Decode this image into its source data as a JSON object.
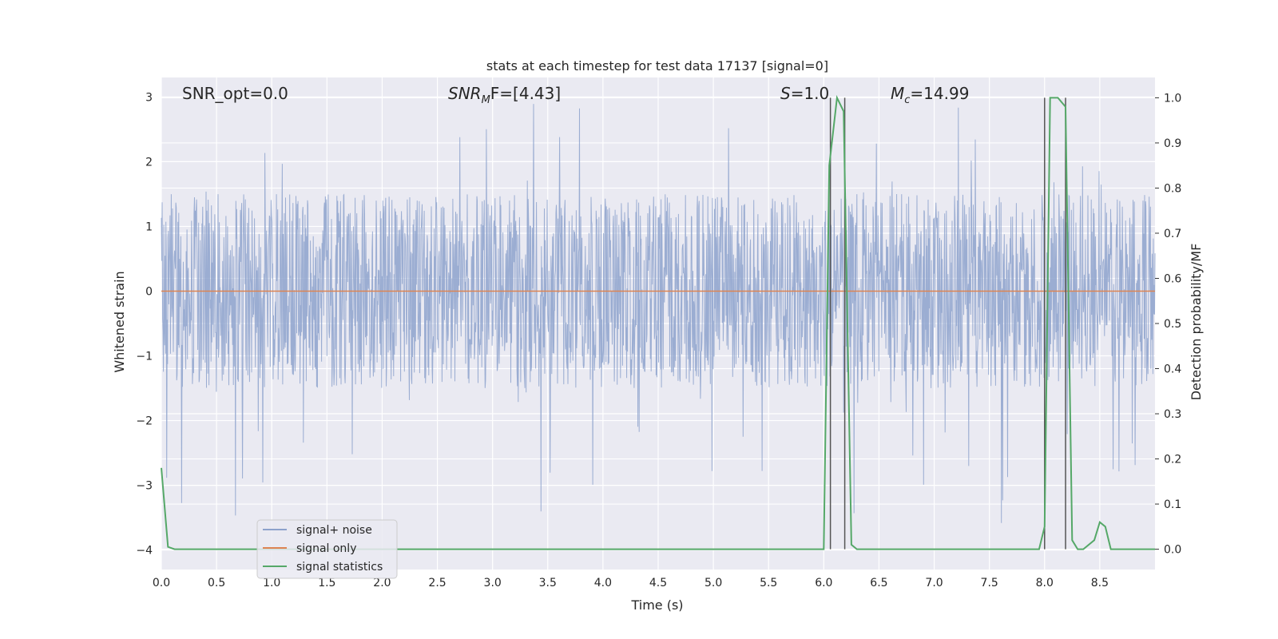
{
  "chart_data": {
    "type": "line",
    "title": "stats at each timestep for test data 17137 [signal=0]",
    "xlabel": "Time (s)",
    "ylabel_left": "Whitened strain",
    "ylabel_right": "Detection probability/MF",
    "xlim": [
      0.0,
      9.0
    ],
    "ylim_left": [
      -4.3,
      3.3
    ],
    "ylim_right": [
      -0.045,
      1.045
    ],
    "x_ticks": [
      "0.0",
      "0.5",
      "1.0",
      "1.5",
      "2.0",
      "2.5",
      "3.0",
      "3.5",
      "4.0",
      "4.5",
      "5.0",
      "5.5",
      "6.0",
      "6.5",
      "7.0",
      "7.5",
      "8.0",
      "8.5"
    ],
    "y_ticks_left": [
      "3",
      "2",
      "1",
      "0",
      "−1",
      "−2",
      "−3",
      "−4"
    ],
    "y_ticks_right": [
      "1.0",
      "0.9",
      "0.8",
      "0.7",
      "0.6",
      "0.5",
      "0.4",
      "0.3",
      "0.2",
      "0.1",
      "0.0"
    ],
    "grid": true,
    "legend_position": "lower-left",
    "annotations": {
      "snr_opt": "SNR_opt=0.0",
      "snr_mf_main": "SNR",
      "snr_mf_sub": "M",
      "snr_mf_rest": "F=[4.43]",
      "s_main": "S",
      "s_rest": "=1.0",
      "mc_main": "M",
      "mc_sub": "c",
      "mc_rest": "=14.99"
    },
    "series": [
      {
        "name": "signal+ noise",
        "color": "#8da2cc",
        "axis": "left",
        "kind": "noise",
        "amplitude_envelope": [
          -1.5,
          1.5
        ],
        "peak_range": [
          -3.6,
          3.0
        ]
      },
      {
        "name": "signal only",
        "color": "#dd8452",
        "axis": "left",
        "x": [
          0.0,
          9.0
        ],
        "y": [
          0.0,
          0.0
        ]
      },
      {
        "name": "signal statistics",
        "color": "#55a868",
        "axis": "right",
        "x": [
          0.0,
          0.06,
          0.12,
          6.0,
          6.05,
          6.12,
          6.18,
          6.25,
          6.3,
          7.95,
          8.0,
          8.05,
          8.12,
          8.19,
          8.25,
          8.3,
          8.35,
          8.45,
          8.5,
          8.55,
          8.6,
          8.7,
          9.0
        ],
        "y": [
          0.18,
          0.005,
          0.0,
          0.0,
          0.85,
          1.0,
          0.97,
          0.01,
          0.0,
          0.0,
          0.05,
          1.0,
          1.0,
          0.98,
          0.02,
          0.0,
          0.0,
          0.02,
          0.06,
          0.05,
          0.0,
          0.0,
          0.0
        ]
      }
    ],
    "vertical_markers": {
      "color": "#555555",
      "x": [
        6.06,
        6.19,
        8.0,
        8.19
      ],
      "y_range": [
        0.0,
        1.0
      ]
    }
  }
}
